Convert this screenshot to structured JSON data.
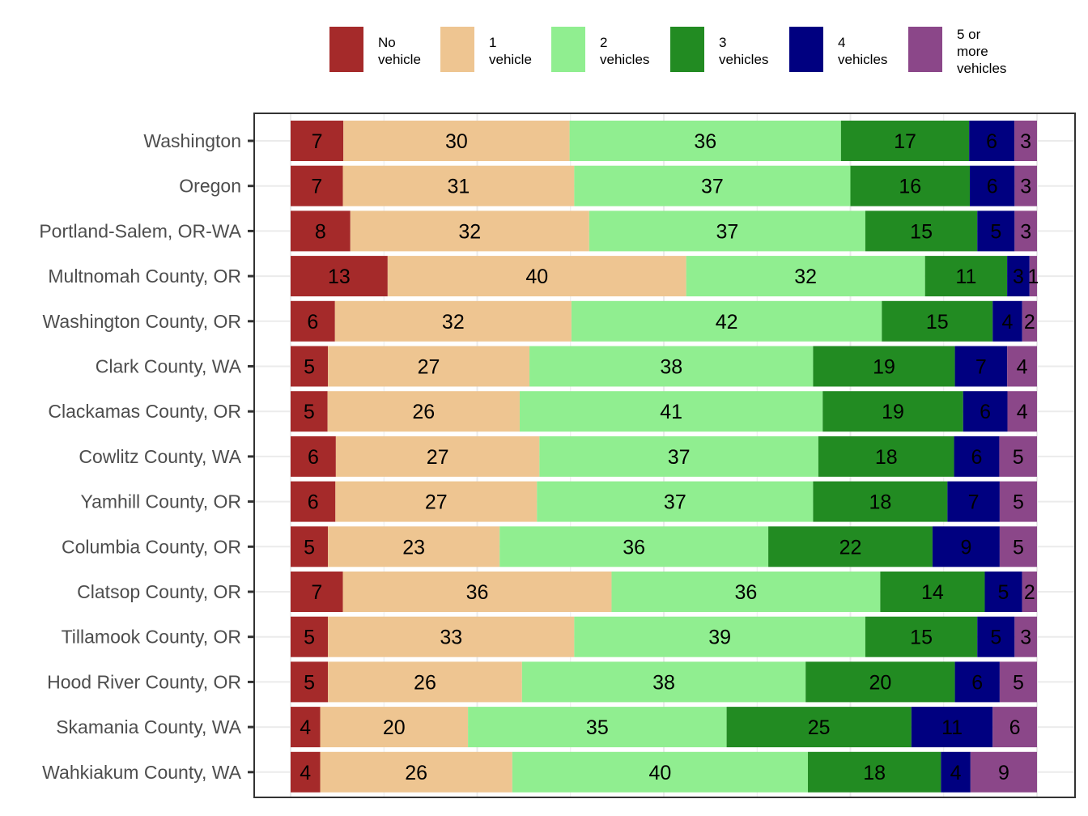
{
  "chart_data": {
    "type": "bar",
    "orientation": "horizontal",
    "stacked": true,
    "title": "",
    "xlabel": "",
    "ylabel": "",
    "xlim": [
      0,
      100
    ],
    "grid": true,
    "legend_position": "top",
    "categories": [
      "Washington",
      "Oregon",
      "Portland-Salem, OR-WA",
      "Multnomah County, OR",
      "Washington County, OR",
      "Clark County, WA",
      "Clackamas County, OR",
      "Cowlitz County, WA",
      "Yamhill County, OR",
      "Columbia County, OR",
      "Clatsop County, OR",
      "Tillamook County, OR",
      "Hood River County, OR",
      "Skamania County, WA",
      "Wahkiakum County, WA"
    ],
    "series": [
      {
        "name": "No vehicle",
        "legend_lines": [
          "No",
          "vehicle"
        ],
        "color": "#a52a2a",
        "values": [
          7,
          7,
          8,
          13,
          6,
          5,
          5,
          6,
          6,
          5,
          7,
          5,
          5,
          4,
          4
        ]
      },
      {
        "name": "1 vehicle",
        "legend_lines": [
          "1",
          "vehicle"
        ],
        "color": "#eec591",
        "values": [
          30,
          31,
          32,
          40,
          32,
          27,
          26,
          27,
          27,
          23,
          36,
          33,
          26,
          20,
          26
        ]
      },
      {
        "name": "2 vehicles",
        "legend_lines": [
          "2",
          "vehicles"
        ],
        "color": "#90ee90",
        "values": [
          36,
          37,
          37,
          32,
          42,
          38,
          41,
          37,
          37,
          36,
          36,
          39,
          38,
          35,
          40
        ]
      },
      {
        "name": "3 vehicles",
        "legend_lines": [
          "3",
          "vehicles"
        ],
        "color": "#228b22",
        "values": [
          17,
          16,
          15,
          11,
          15,
          19,
          19,
          18,
          18,
          22,
          14,
          15,
          20,
          25,
          18
        ]
      },
      {
        "name": "4 vehicles",
        "legend_lines": [
          "4",
          "vehicles"
        ],
        "color": "#000080",
        "values": [
          6,
          6,
          5,
          3,
          4,
          7,
          6,
          6,
          7,
          9,
          5,
          5,
          6,
          11,
          4
        ]
      },
      {
        "name": "5 or more vehicles",
        "legend_lines": [
          "5 or",
          "more",
          "vehicles"
        ],
        "color": "#8b4789",
        "values": [
          3,
          3,
          3,
          1,
          2,
          4,
          4,
          5,
          5,
          5,
          2,
          3,
          5,
          6,
          9
        ]
      }
    ]
  }
}
